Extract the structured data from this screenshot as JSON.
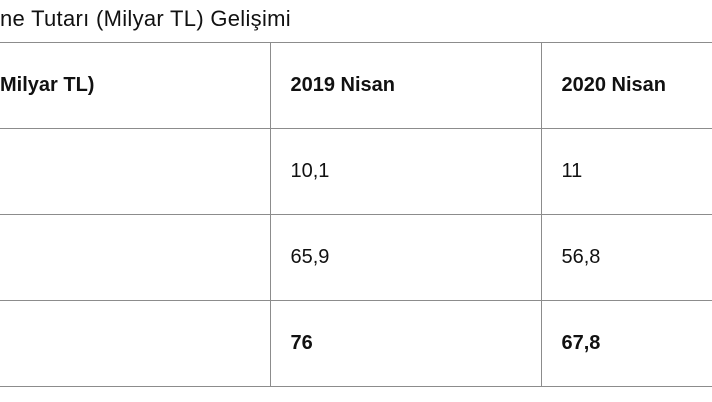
{
  "title": "ne Tutarı (Milyar TL) Gelişimi",
  "table": {
    "header": [
      "Milyar TL)",
      "2019 Nisan",
      "2020 Nisan"
    ],
    "rows": [
      [
        null,
        "10,1",
        "11"
      ],
      [
        null,
        "65,9",
        "56,8"
      ],
      [
        null,
        "76",
        "67,8"
      ]
    ]
  }
}
